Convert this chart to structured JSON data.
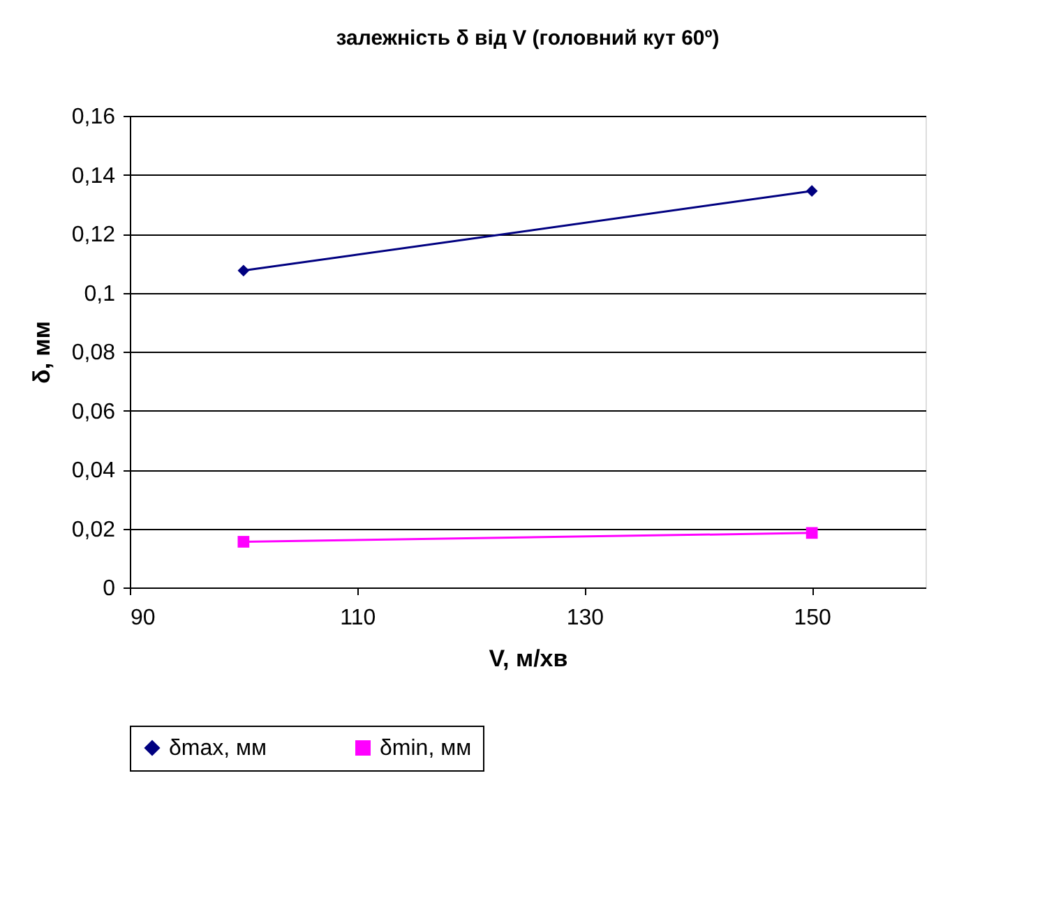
{
  "chart_data": {
    "type": "line",
    "title": "залежність δ від V (головний кут 60º)",
    "xlabel": "V, м/хв",
    "ylabel": "δ, мм",
    "x": [
      100,
      150
    ],
    "series": [
      {
        "name": "δmax, мм",
        "color": "#000080",
        "marker": "diamond",
        "values": [
          0.1075,
          0.1345
        ]
      },
      {
        "name": "δmin, мм",
        "color": "#ff00ff",
        "marker": "square",
        "values": [
          0.0155,
          0.0185
        ]
      }
    ],
    "xlim": [
      90,
      160
    ],
    "xticks": [
      90,
      110,
      130,
      150
    ],
    "ylim": [
      0,
      0.16
    ],
    "yticks": [
      {
        "value": 0,
        "label": "0"
      },
      {
        "value": 0.02,
        "label": "0,02"
      },
      {
        "value": 0.04,
        "label": "0,04"
      },
      {
        "value": 0.06,
        "label": "0,06"
      },
      {
        "value": 0.08,
        "label": "0,08"
      },
      {
        "value": 0.1,
        "label": "0,1"
      },
      {
        "value": 0.12,
        "label": "0,12"
      },
      {
        "value": 0.14,
        "label": "0,14"
      },
      {
        "value": 0.16,
        "label": "0,16"
      }
    ],
    "grid": "y",
    "legend": "bottom",
    "line_style": "solid"
  }
}
